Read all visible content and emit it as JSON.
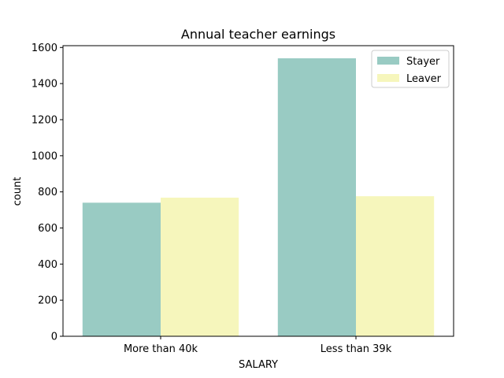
{
  "chart_data": {
    "type": "bar",
    "title": "Annual teacher earnings",
    "xlabel": "SALARY",
    "ylabel": "count",
    "categories": [
      "More than 40k",
      "Less than 39k"
    ],
    "series": [
      {
        "name": "Stayer",
        "values": [
          740,
          1540
        ],
        "color": "#99cbc3"
      },
      {
        "name": "Leaver",
        "values": [
          768,
          776
        ],
        "color": "#f6f6bc"
      }
    ],
    "ylim": [
      0,
      1610
    ],
    "yticks": [
      0,
      200,
      400,
      600,
      800,
      1000,
      1200,
      1400,
      1600
    ],
    "legend": "top-right",
    "grid": false
  }
}
